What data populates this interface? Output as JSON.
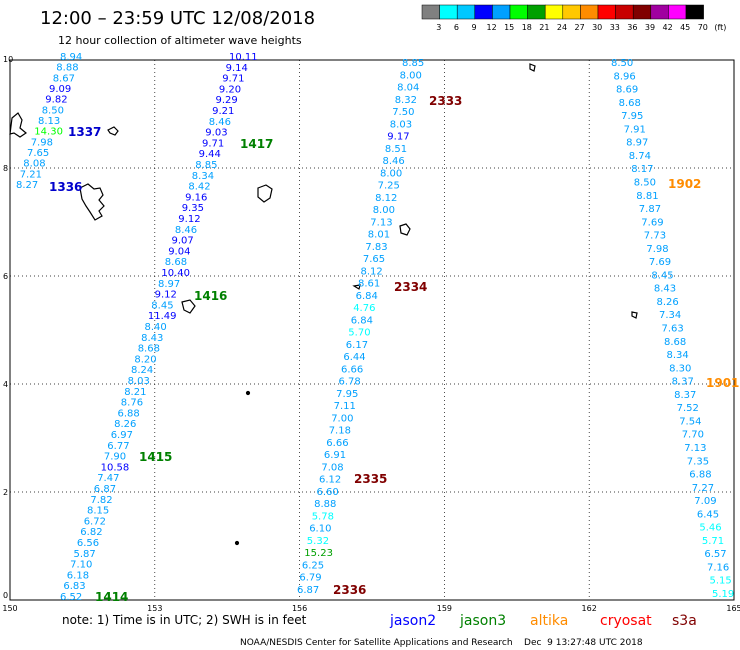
{
  "title": "12:00 – 23:59 UTC 12/08/2018",
  "subtitle": "12 hour collection of altimeter wave heights",
  "colorbar": {
    "labels": [
      "3",
      "6",
      "9",
      "12",
      "15",
      "18",
      "21",
      "24",
      "27",
      "30",
      "33",
      "36",
      "39",
      "42",
      "45",
      "70",
      "(ft)"
    ],
    "colors": [
      "#808080",
      "#00ffff",
      "#00c8ff",
      "#0000ff",
      "#00a0ff",
      "#00ff00",
      "#00a000",
      "#ffff00",
      "#ffc800",
      "#ff8c00",
      "#ff0000",
      "#c80000",
      "#800000",
      "#a000a0",
      "#ff00ff",
      "#000000"
    ]
  },
  "axes": {
    "x_ticks": [
      "150",
      "153",
      "156",
      "159",
      "162",
      "165"
    ],
    "y_ticks": [
      "0",
      "2",
      "4",
      "6",
      "8",
      "10"
    ]
  },
  "map_symbols": {
    "pass_numbers": [
      {
        "label": "1337",
        "color": "#0000cc"
      },
      {
        "label": "1336",
        "color": "#0000cc"
      },
      {
        "label": "1417",
        "color": "#008000"
      },
      {
        "label": "1416",
        "color": "#008000"
      },
      {
        "label": "1415",
        "color": "#008000"
      },
      {
        "label": "1414",
        "color": "#008000"
      },
      {
        "label": "2333",
        "color": "#800000"
      },
      {
        "label": "2334",
        "color": "#800000"
      },
      {
        "label": "2335",
        "color": "#800000"
      },
      {
        "label": "2336",
        "color": "#800000"
      },
      {
        "label": "1902",
        "color": "#ff8c00"
      },
      {
        "label": "1901",
        "color": "#ff8c00"
      }
    ],
    "tracks": [
      {
        "name": "track-1",
        "values": [
          "8.94",
          "8.88",
          "8.67",
          "9.09",
          "9.82",
          "8.50",
          "8.13",
          "14.30",
          "7.98",
          "7.65",
          "8.08",
          "7.21",
          "8.27"
        ],
        "colors": [
          "#00a0ff",
          "#00a0ff",
          "#00a0ff",
          "#0000ff",
          "#0000ff",
          "#00a0ff",
          "#00a0ff",
          "#00ff00",
          "#00a0ff",
          "#00a0ff",
          "#00a0ff",
          "#00a0ff",
          "#00a0ff"
        ]
      },
      {
        "name": "track-2",
        "values": [
          "10.11",
          "9.14",
          "9.71",
          "9.20",
          "9.29",
          "9.21",
          "8.46",
          "9.03",
          "9.71",
          "9.44",
          "8.85",
          "8.34",
          "8.42",
          "9.16",
          "9.35",
          "9.12",
          "8.46",
          "9.07",
          "9.04",
          "8.68",
          "10.40",
          "8.97",
          "9.12",
          "8.45",
          "11.49",
          "8.40",
          "8.43",
          "8.68",
          "8.20",
          "8.24",
          "8.03",
          "8.21",
          "8.76",
          "6.88",
          "8.26",
          "6.97",
          "6.77",
          "7.90",
          "10.58",
          "7.47",
          "6.87",
          "7.82",
          "8.15",
          "6.72",
          "6.82",
          "6.56",
          "5.87",
          "7.10",
          "6.18",
          "6.83",
          "6.52"
        ],
        "colors": [
          "#0000ff",
          "#0000ff",
          "#0000ff",
          "#0000ff",
          "#0000ff",
          "#0000ff",
          "#00a0ff",
          "#0000ff",
          "#0000ff",
          "#0000ff",
          "#00a0ff",
          "#00a0ff",
          "#00a0ff",
          "#0000ff",
          "#0000ff",
          "#0000ff",
          "#00a0ff",
          "#0000ff",
          "#0000ff",
          "#00a0ff",
          "#0000ff",
          "#00a0ff",
          "#0000ff",
          "#00a0ff",
          "#0000ff",
          "#00a0ff",
          "#00a0ff",
          "#00a0ff",
          "#00a0ff",
          "#00a0ff",
          "#00a0ff",
          "#00a0ff",
          "#00a0ff",
          "#00a0ff",
          "#00a0ff",
          "#00a0ff",
          "#00a0ff",
          "#00a0ff",
          "#0000ff",
          "#00a0ff",
          "#00a0ff",
          "#00a0ff",
          "#00a0ff",
          "#00a0ff",
          "#00a0ff",
          "#00a0ff",
          "#00a0ff",
          "#00a0ff",
          "#00a0ff",
          "#00a0ff",
          "#00a0ff"
        ]
      },
      {
        "name": "track-3",
        "values": [
          "8.85",
          "8.00",
          "8.04",
          "8.32",
          "7.50",
          "8.03",
          "9.17",
          "8.51",
          "8.46",
          "8.00",
          "7.25",
          "8.12",
          "8.00",
          "7.13",
          "8.01",
          "7.83",
          "7.65",
          "8.12",
          "8.61",
          "6.84",
          "4.76",
          "6.84",
          "5.70",
          "6.17",
          "6.44",
          "6.66",
          "6.78",
          "7.95",
          "7.11",
          "7.00",
          "7.18",
          "6.66",
          "6.91",
          "7.08",
          "6.12",
          "6.60",
          "8.88",
          "5.78",
          "6.10",
          "5.32",
          "15.23",
          "6.25",
          "6.79",
          "6.87"
        ],
        "colors": [
          "#00a0ff",
          "#00a0ff",
          "#00a0ff",
          "#00a0ff",
          "#00a0ff",
          "#00a0ff",
          "#0000ff",
          "#00a0ff",
          "#00a0ff",
          "#00a0ff",
          "#00a0ff",
          "#00a0ff",
          "#00a0ff",
          "#00a0ff",
          "#00a0ff",
          "#00a0ff",
          "#00a0ff",
          "#00a0ff",
          "#00a0ff",
          "#00a0ff",
          "#00ffff",
          "#00a0ff",
          "#00ffff",
          "#00a0ff",
          "#00a0ff",
          "#00a0ff",
          "#00a0ff",
          "#00a0ff",
          "#00a0ff",
          "#00a0ff",
          "#00a0ff",
          "#00a0ff",
          "#00a0ff",
          "#00a0ff",
          "#00a0ff",
          "#00a0ff",
          "#00a0ff",
          "#00ffff",
          "#00a0ff",
          "#00ffff",
          "#00a000",
          "#00a0ff",
          "#00a0ff",
          "#00a0ff"
        ]
      },
      {
        "name": "track-4",
        "values": [
          "8.50",
          "8.96",
          "8.69",
          "8.68",
          "7.95",
          "7.91",
          "8.97",
          "8.74",
          "8.17",
          "8.50",
          "8.81",
          "7.87",
          "7.69",
          "7.73",
          "7.98",
          "7.69",
          "8.45",
          "8.43",
          "8.26",
          "7.34",
          "7.63",
          "8.68",
          "8.34",
          "8.30",
          "8.37",
          "8.37",
          "7.52",
          "7.54",
          "7.70",
          "7.13",
          "7.35",
          "6.88",
          "7.27",
          "7.09",
          "6.45",
          "5.46",
          "5.71",
          "6.57",
          "7.16",
          "5.15",
          "5.19"
        ],
        "colors": [
          "#00a0ff",
          "#00a0ff",
          "#00a0ff",
          "#00a0ff",
          "#00a0ff",
          "#00a0ff",
          "#00a0ff",
          "#00a0ff",
          "#00a0ff",
          "#00a0ff",
          "#00a0ff",
          "#00a0ff",
          "#00a0ff",
          "#00a0ff",
          "#00a0ff",
          "#00a0ff",
          "#00a0ff",
          "#00a0ff",
          "#00a0ff",
          "#00a0ff",
          "#00a0ff",
          "#00a0ff",
          "#00a0ff",
          "#00a0ff",
          "#00a0ff",
          "#00a0ff",
          "#00a0ff",
          "#00a0ff",
          "#00a0ff",
          "#00a0ff",
          "#00a0ff",
          "#00a0ff",
          "#00a0ff",
          "#00a0ff",
          "#00a0ff",
          "#00ffff",
          "#00ffff",
          "#00a0ff",
          "#00a0ff",
          "#00ffff",
          "#00ffff"
        ]
      }
    ]
  },
  "footer": {
    "note": "note: 1) Time is in UTC; 2) SWH is in feet",
    "satellites": [
      {
        "label": "jason2",
        "color": "#0000ff"
      },
      {
        "label": "jason3",
        "color": "#008000"
      },
      {
        "label": "altika",
        "color": "#ff8c00"
      },
      {
        "label": "cryosat",
        "color": "#ff0000"
      },
      {
        "label": "s3a",
        "color": "#800000"
      }
    ],
    "credit": "NOAA/NESDIS Center for Satellite Applications and Research    Dec  9 13:27:48 UTC 2018"
  }
}
